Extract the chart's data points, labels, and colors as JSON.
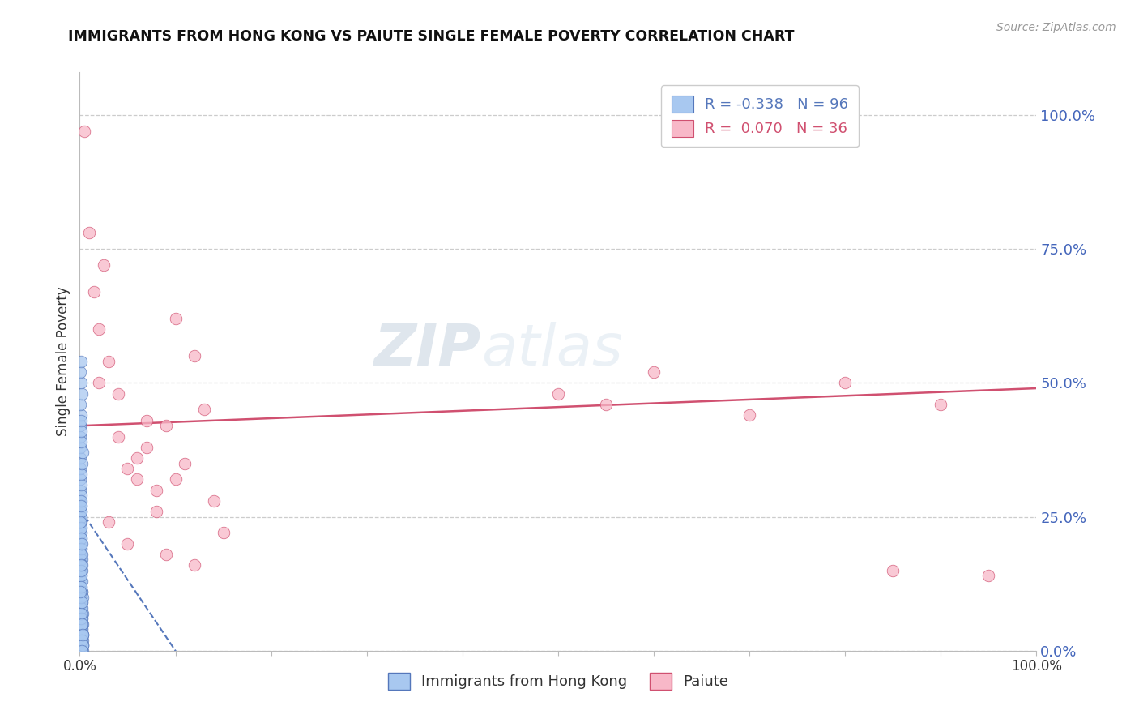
{
  "title": "IMMIGRANTS FROM HONG KONG VS PAIUTE SINGLE FEMALE POVERTY CORRELATION CHART",
  "source_text": "Source: ZipAtlas.com",
  "ylabel": "Single Female Poverty",
  "xlim": [
    0,
    1.0
  ],
  "ylim": [
    0.0,
    1.08
  ],
  "ytick_values": [
    0.0,
    0.25,
    0.5,
    0.75,
    1.0
  ],
  "ytick_labels": [
    "0.0%",
    "25.0%",
    "50.0%",
    "75.0%",
    "100.0%"
  ],
  "xtick_values": [
    0.0,
    0.1,
    0.2,
    0.3,
    0.4,
    0.5,
    0.6,
    0.7,
    0.8,
    0.9,
    1.0
  ],
  "xtick_labels": [
    "0.0%",
    "",
    "",
    "",
    "",
    "",
    "",
    "",
    "",
    "",
    "100.0%"
  ],
  "legend_labels": [
    "Immigrants from Hong Kong",
    "Paiute"
  ],
  "R_blue": -0.338,
  "N_blue": 96,
  "R_pink": 0.07,
  "N_pink": 36,
  "blue_color": "#a8c8f0",
  "blue_edge_color": "#5577bb",
  "pink_color": "#f8b8c8",
  "pink_edge_color": "#d05070",
  "trend_blue_color": "#5577bb",
  "trend_pink_color": "#d05070",
  "watermark_zip": "ZIP",
  "watermark_atlas": "atlas",
  "background_color": "#ffffff",
  "grid_color": "#cccccc",
  "axis_color": "#bbbbbb",
  "right_tick_color": "#4466bb",
  "title_color": "#111111",
  "blue_trend_start_y": 0.265,
  "blue_trend_end_y": 0.0,
  "blue_trend_end_x": 0.1,
  "pink_trend_start_y": 0.42,
  "pink_trend_end_y": 0.49,
  "blue_scatter_x": [
    0.001,
    0.0015,
    0.002,
    0.001,
    0.003,
    0.001,
    0.0008,
    0.002,
    0.001,
    0.0015,
    0.001,
    0.002,
    0.001,
    0.0005,
    0.003,
    0.001,
    0.002,
    0.001,
    0.0015,
    0.002,
    0.001,
    0.003,
    0.002,
    0.001,
    0.0008,
    0.0015,
    0.001,
    0.002,
    0.001,
    0.003,
    0.0005,
    0.002,
    0.001,
    0.0015,
    0.002,
    0.001,
    0.003,
    0.0008,
    0.002,
    0.001,
    0.0015,
    0.001,
    0.002,
    0.0005,
    0.001,
    0.003,
    0.002,
    0.001,
    0.0015,
    0.002,
    0.001,
    0.0008,
    0.002,
    0.001,
    0.003,
    0.0005,
    0.002,
    0.001,
    0.0015,
    0.002,
    0.001,
    0.003,
    0.002,
    0.0008,
    0.001,
    0.0015,
    0.002,
    0.001,
    0.003,
    0.001,
    0.002,
    0.0005,
    0.001,
    0.0015,
    0.003,
    0.002,
    0.001,
    0.0008,
    0.002,
    0.001,
    0.0015,
    0.001,
    0.002,
    0.003,
    0.001,
    0.0005,
    0.002,
    0.001,
    0.0015,
    0.002,
    0.001,
    0.003,
    0.002,
    0.001,
    0.0008,
    0.0015
  ],
  "blue_scatter_y": [
    0.22,
    0.18,
    0.15,
    0.2,
    0.1,
    0.25,
    0.12,
    0.17,
    0.08,
    0.14,
    0.23,
    0.09,
    0.19,
    0.28,
    0.07,
    0.16,
    0.11,
    0.26,
    0.13,
    0.06,
    0.21,
    0.05,
    0.18,
    0.24,
    0.3,
    0.1,
    0.27,
    0.04,
    0.22,
    0.03,
    0.32,
    0.08,
    0.2,
    0.15,
    0.02,
    0.25,
    0.01,
    0.34,
    0.07,
    0.23,
    0.12,
    0.29,
    0.06,
    0.36,
    0.17,
    0.0,
    0.13,
    0.31,
    0.09,
    0.04,
    0.26,
    0.38,
    0.05,
    0.21,
    0.02,
    0.4,
    0.11,
    0.33,
    0.08,
    0.03,
    0.28,
    0.01,
    0.16,
    0.42,
    0.06,
    0.14,
    0.35,
    0.44,
    0.03,
    0.19,
    0.0,
    0.46,
    0.1,
    0.12,
    0.37,
    0.48,
    0.07,
    0.24,
    0.02,
    0.5,
    0.15,
    0.39,
    0.05,
    0.01,
    0.27,
    0.52,
    0.09,
    0.41,
    0.18,
    0.0,
    0.43,
    0.03,
    0.2,
    0.54,
    0.11,
    0.16
  ],
  "pink_scatter_x": [
    0.005,
    0.01,
    0.015,
    0.02,
    0.025,
    0.03,
    0.04,
    0.05,
    0.06,
    0.07,
    0.08,
    0.09,
    0.1,
    0.11,
    0.12,
    0.13,
    0.14,
    0.15,
    0.04,
    0.06,
    0.02,
    0.08,
    0.03,
    0.05,
    0.1,
    0.07,
    0.09,
    0.12,
    0.5,
    0.55,
    0.6,
    0.7,
    0.8,
    0.9,
    0.85,
    0.95
  ],
  "pink_scatter_y": [
    0.97,
    0.78,
    0.67,
    0.6,
    0.72,
    0.54,
    0.4,
    0.34,
    0.32,
    0.38,
    0.3,
    0.42,
    0.62,
    0.35,
    0.55,
    0.45,
    0.28,
    0.22,
    0.48,
    0.36,
    0.5,
    0.26,
    0.24,
    0.2,
    0.32,
    0.43,
    0.18,
    0.16,
    0.48,
    0.46,
    0.52,
    0.44,
    0.5,
    0.46,
    0.15,
    0.14
  ]
}
